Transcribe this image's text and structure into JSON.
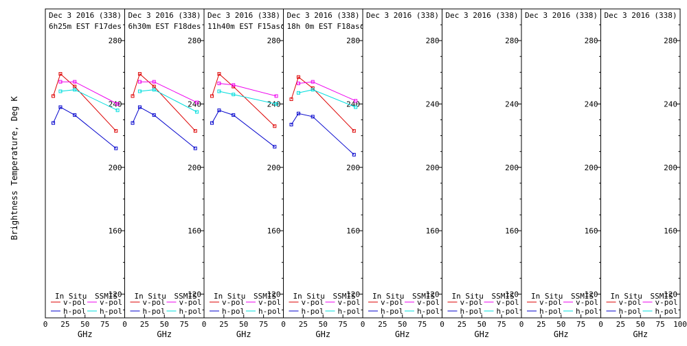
{
  "figure": {
    "ylabel": "Brightness Temperature, Deg K",
    "xlabel": "GHz",
    "legend": {
      "in_situ": "In Situ",
      "ssmis": "SSMIS",
      "vpol": "v-pol",
      "hpol": "h-pol"
    }
  },
  "colors": {
    "insitu_v": "#dd0000",
    "insitu_h": "#0000cc",
    "ssmis_v": "#ee00ee",
    "ssmis_h": "#00dddd"
  },
  "chart_data": [
    {
      "type": "line",
      "date_line": "Dec 3 2016 (338)",
      "time_line": "6h25m EST F17des",
      "xlim": [
        0,
        100
      ],
      "ylim": [
        105,
        300
      ],
      "x_ticks": [
        "0",
        "25",
        "50",
        "75",
        "100"
      ],
      "y_ticks": [
        "120",
        "160",
        "200",
        "240",
        "280"
      ],
      "series": [
        {
          "name": "In Situ v-pol",
          "key": "insitu_v",
          "x": [
            10,
            19,
            37,
            89
          ],
          "y": [
            245,
            259,
            251,
            223
          ]
        },
        {
          "name": "In Situ h-pol",
          "key": "insitu_h",
          "x": [
            10,
            19,
            37,
            89
          ],
          "y": [
            228,
            238,
            233,
            212
          ]
        },
        {
          "name": "SSMIS v-pol",
          "key": "ssmis_v",
          "x": [
            19,
            37,
            91
          ],
          "y": [
            254,
            254,
            240
          ]
        },
        {
          "name": "SSMIS h-pol",
          "key": "ssmis_h",
          "x": [
            19,
            37,
            91
          ],
          "y": [
            248,
            249,
            236
          ]
        }
      ]
    },
    {
      "type": "line",
      "date_line": "Dec 3 2016 (338)",
      "time_line": "6h30m EST F18des",
      "xlim": [
        0,
        100
      ],
      "ylim": [
        105,
        300
      ],
      "x_ticks": [
        "0",
        "25",
        "50",
        "75",
        "100"
      ],
      "y_ticks": [
        "120",
        "160",
        "200",
        "240",
        "280"
      ],
      "series": [
        {
          "name": "In Situ v-pol",
          "key": "insitu_v",
          "x": [
            10,
            19,
            37,
            89
          ],
          "y": [
            245,
            259,
            251,
            223
          ]
        },
        {
          "name": "In Situ h-pol",
          "key": "insitu_h",
          "x": [
            10,
            19,
            37,
            89
          ],
          "y": [
            228,
            238,
            233,
            212
          ]
        },
        {
          "name": "SSMIS v-pol",
          "key": "ssmis_v",
          "x": [
            19,
            37,
            91
          ],
          "y": [
            254,
            254,
            241
          ]
        },
        {
          "name": "SSMIS h-pol",
          "key": "ssmis_h",
          "x": [
            19,
            37,
            91
          ],
          "y": [
            248,
            249,
            235
          ]
        }
      ]
    },
    {
      "type": "line",
      "date_line": "Dec 3 2016 (338)",
      "time_line": "11h40m EST F15asc",
      "xlim": [
        0,
        100
      ],
      "ylim": [
        105,
        300
      ],
      "x_ticks": [
        "0",
        "25",
        "50",
        "75",
        "100"
      ],
      "y_ticks": [
        "120",
        "160",
        "200",
        "240",
        "280"
      ],
      "series": [
        {
          "name": "In Situ v-pol",
          "key": "insitu_v",
          "x": [
            10,
            19,
            37,
            89
          ],
          "y": [
            245,
            259,
            251,
            226
          ]
        },
        {
          "name": "In Situ h-pol",
          "key": "insitu_h",
          "x": [
            10,
            19,
            37,
            89
          ],
          "y": [
            228,
            236,
            233,
            213
          ]
        },
        {
          "name": "SSMIS v-pol",
          "key": "ssmis_v",
          "x": [
            19,
            37,
            91
          ],
          "y": [
            253,
            252,
            245
          ]
        },
        {
          "name": "SSMIS h-pol",
          "key": "ssmis_h",
          "x": [
            19,
            37,
            91
          ],
          "y": [
            248,
            246,
            240
          ]
        }
      ]
    },
    {
      "type": "line",
      "date_line": "Dec 3 2016 (338)",
      "time_line": "18h 0m EST F18asc",
      "xlim": [
        0,
        100
      ],
      "ylim": [
        105,
        300
      ],
      "x_ticks": [
        "0",
        "25",
        "50",
        "75",
        "100"
      ],
      "y_ticks": [
        "120",
        "160",
        "200",
        "240",
        "280"
      ],
      "series": [
        {
          "name": "In Situ v-pol",
          "key": "insitu_v",
          "x": [
            10,
            19,
            37,
            89
          ],
          "y": [
            243,
            257,
            250,
            223
          ]
        },
        {
          "name": "In Situ h-pol",
          "key": "insitu_h",
          "x": [
            10,
            19,
            37,
            89
          ],
          "y": [
            227,
            234,
            232,
            208
          ]
        },
        {
          "name": "SSMIS v-pol",
          "key": "ssmis_v",
          "x": [
            19,
            37,
            91
          ],
          "y": [
            253,
            254,
            242
          ]
        },
        {
          "name": "SSMIS h-pol",
          "key": "ssmis_h",
          "x": [
            19,
            37,
            91
          ],
          "y": [
            247,
            249,
            238
          ]
        }
      ]
    },
    {
      "type": "line",
      "date_line": "Dec 3 2016 (338)",
      "time_line": "",
      "xlim": [
        0,
        100
      ],
      "ylim": [
        105,
        300
      ],
      "x_ticks": [
        "0",
        "25",
        "50",
        "75",
        "100"
      ],
      "y_ticks": [
        "120",
        "160",
        "200",
        "240",
        "280"
      ],
      "series": []
    },
    {
      "type": "line",
      "date_line": "Dec 3 2016 (338)",
      "time_line": "",
      "xlim": [
        0,
        100
      ],
      "ylim": [
        105,
        300
      ],
      "x_ticks": [
        "0",
        "25",
        "50",
        "75",
        "100"
      ],
      "y_ticks": [
        "120",
        "160",
        "200",
        "240",
        "280"
      ],
      "series": []
    },
    {
      "type": "line",
      "date_line": "Dec 3 2016 (338)",
      "time_line": "",
      "xlim": [
        0,
        100
      ],
      "ylim": [
        105,
        300
      ],
      "x_ticks": [
        "0",
        "25",
        "50",
        "75",
        "100"
      ],
      "y_ticks": [
        "120",
        "160",
        "200",
        "240",
        "280"
      ],
      "series": []
    },
    {
      "type": "line",
      "date_line": "Dec 3 2016 (338)",
      "time_line": "",
      "xlim": [
        0,
        100
      ],
      "ylim": [
        105,
        300
      ],
      "x_ticks": [
        "0",
        "25",
        "50",
        "75",
        "100"
      ],
      "y_ticks": [
        "120",
        "160",
        "200",
        "240",
        "280"
      ],
      "series": []
    }
  ]
}
